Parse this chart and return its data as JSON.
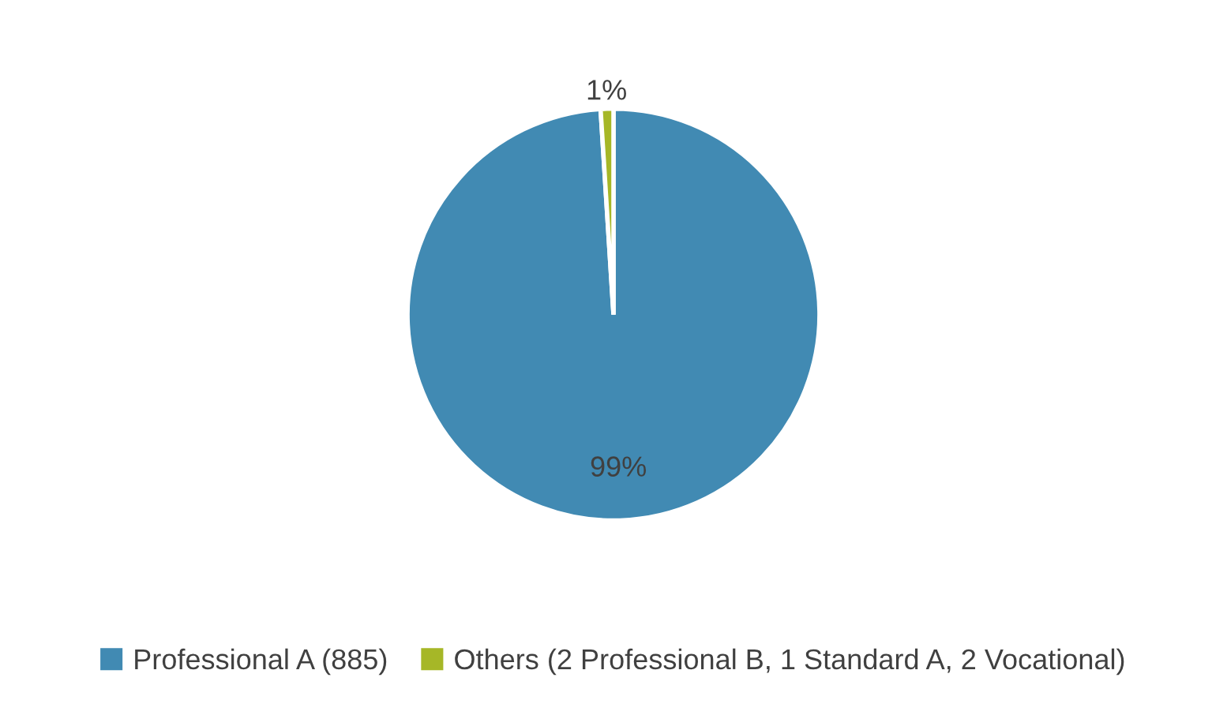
{
  "chart_data": {
    "type": "pie",
    "categories": [
      "Professional A (885)",
      "Others (2 Professional B, 1 Standard A, 2 Vocational)"
    ],
    "values": [
      99,
      1
    ],
    "colors": [
      "#418ab3",
      "#a6b727"
    ],
    "value_labels": [
      "99%",
      "1%"
    ],
    "legend": "bottom"
  }
}
